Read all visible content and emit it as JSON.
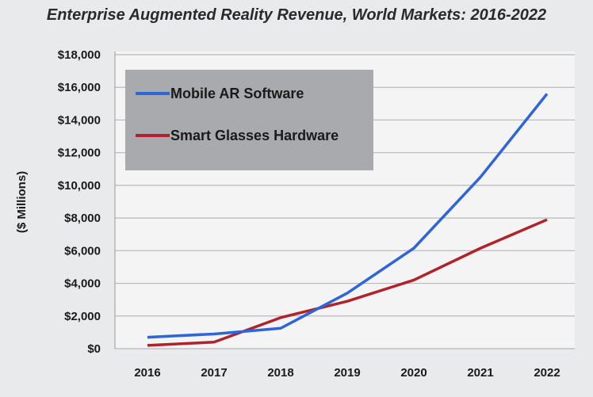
{
  "chart_data": {
    "type": "line",
    "title": "Enterprise Augmented Reality Revenue, World Markets: 2016-2022",
    "xlabel": "",
    "ylabel": "($ Millions)",
    "categories": [
      "2016",
      "2017",
      "2018",
      "2019",
      "2020",
      "2021",
      "2022"
    ],
    "ylim": [
      0,
      18000
    ],
    "yticks": [
      "$0",
      "$2,000",
      "$4,000",
      "$6,000",
      "$8,000",
      "$10,000",
      "$12,000",
      "$14,000",
      "$16,000",
      "$18,000"
    ],
    "grid": true,
    "legend_placement": "top-left",
    "series": [
      {
        "name": "Mobile AR Software",
        "color": "#2f66d6",
        "values": [
          700,
          900,
          1250,
          3400,
          6150,
          10500,
          15600
        ]
      },
      {
        "name": "Smart Glasses Hardware",
        "color": "#b0232a",
        "values": [
          200,
          400,
          1900,
          2900,
          4200,
          6150,
          7900
        ]
      }
    ]
  }
}
